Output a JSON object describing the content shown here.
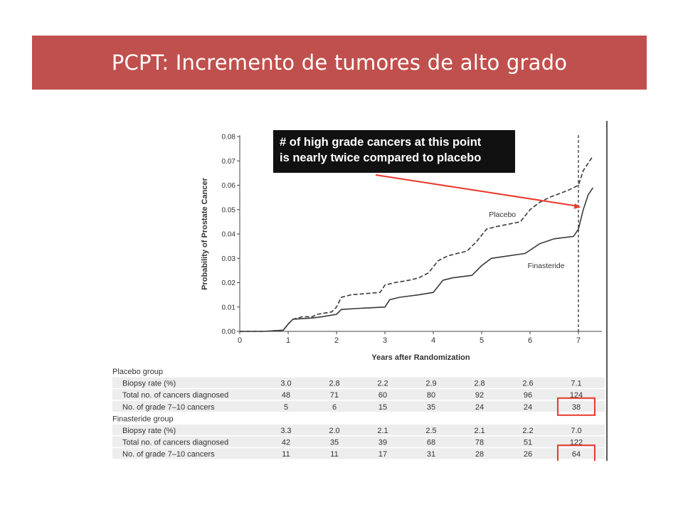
{
  "slide": {
    "title": "PCPT: Incremento de tumores de alto grado"
  },
  "colors": {
    "title_bg": "#c0504d",
    "arrow": "#e8392a",
    "highlight_box": "#e8392a",
    "annotation_bg": "#111111",
    "table_band": "#ededed"
  },
  "chart_data": {
    "type": "line",
    "title": "",
    "xlabel": "Years after Randomization",
    "ylabel": "Probability of Prostate Cancer",
    "xlim": [
      0,
      7.5
    ],
    "ylim": [
      0,
      0.08
    ],
    "x_ticks": [
      0,
      1,
      2,
      3,
      4,
      5,
      6,
      7
    ],
    "y_ticks": [
      "0.00",
      "0.01",
      "0.02",
      "0.03",
      "0.04",
      "0.05",
      "0.06",
      "0.07",
      "0.08"
    ],
    "grid": false,
    "series": [
      {
        "name": "Placebo",
        "style": "dashed",
        "points": [
          [
            0,
            0
          ],
          [
            0.5,
            0
          ],
          [
            0.9,
            0.0005
          ],
          [
            1.0,
            0.003
          ],
          [
            1.1,
            0.005
          ],
          [
            1.3,
            0.006
          ],
          [
            1.5,
            0.006
          ],
          [
            1.6,
            0.007
          ],
          [
            1.9,
            0.008
          ],
          [
            2.0,
            0.01
          ],
          [
            2.1,
            0.014
          ],
          [
            2.3,
            0.015
          ],
          [
            2.9,
            0.016
          ],
          [
            3.0,
            0.019
          ],
          [
            3.2,
            0.02
          ],
          [
            3.5,
            0.021
          ],
          [
            3.7,
            0.022
          ],
          [
            3.9,
            0.024
          ],
          [
            4.1,
            0.029
          ],
          [
            4.3,
            0.031
          ],
          [
            4.7,
            0.033
          ],
          [
            4.9,
            0.037
          ],
          [
            5.1,
            0.042
          ],
          [
            5.3,
            0.043
          ],
          [
            5.8,
            0.045
          ],
          [
            6.0,
            0.05
          ],
          [
            6.2,
            0.053
          ],
          [
            6.4,
            0.055
          ],
          [
            6.8,
            0.058
          ],
          [
            7.0,
            0.06
          ],
          [
            7.1,
            0.066
          ],
          [
            7.2,
            0.069
          ],
          [
            7.3,
            0.072
          ]
        ]
      },
      {
        "name": "Finasteride",
        "style": "solid",
        "points": [
          [
            0,
            0
          ],
          [
            0.5,
            0
          ],
          [
            0.9,
            0.0005
          ],
          [
            1.0,
            0.003
          ],
          [
            1.1,
            0.005
          ],
          [
            1.5,
            0.0055
          ],
          [
            1.7,
            0.006
          ],
          [
            2.0,
            0.007
          ],
          [
            2.1,
            0.009
          ],
          [
            2.5,
            0.0095
          ],
          [
            3.0,
            0.01
          ],
          [
            3.1,
            0.013
          ],
          [
            3.3,
            0.014
          ],
          [
            3.7,
            0.015
          ],
          [
            4.0,
            0.016
          ],
          [
            4.2,
            0.021
          ],
          [
            4.4,
            0.022
          ],
          [
            4.8,
            0.023
          ],
          [
            5.0,
            0.027
          ],
          [
            5.2,
            0.03
          ],
          [
            5.9,
            0.032
          ],
          [
            6.2,
            0.036
          ],
          [
            6.5,
            0.038
          ],
          [
            6.9,
            0.039
          ],
          [
            7.0,
            0.042
          ],
          [
            7.1,
            0.05
          ],
          [
            7.2,
            0.056
          ],
          [
            7.3,
            0.059
          ]
        ]
      }
    ],
    "vertical_marker_x": 7,
    "annotation": {
      "lines": [
        "# of high grade cancers at this point",
        "is nearly twice compared to placebo"
      ],
      "arrow_to": [
        7.05,
        0.051
      ]
    },
    "table": {
      "columns": [
        1,
        2,
        3,
        4,
        5,
        6,
        7
      ],
      "groups": [
        {
          "name": "Placebo group",
          "rows": [
            {
              "label": "Biopsy rate (%)",
              "values": [
                "3.0",
                "2.8",
                "2.2",
                "2.9",
                "2.8",
                "2.6",
                "7.1"
              ]
            },
            {
              "label": "Total no. of cancers diagnosed",
              "values": [
                "48",
                "71",
                "60",
                "80",
                "92",
                "96",
                "124"
              ]
            },
            {
              "label": "No. of grade 7–10 cancers",
              "values": [
                "5",
                "6",
                "15",
                "35",
                "24",
                "24",
                "38"
              ],
              "highlight_last": true
            }
          ]
        },
        {
          "name": "Finasteride group",
          "rows": [
            {
              "label": "Biopsy rate (%)",
              "values": [
                "3.3",
                "2.0",
                "2.1",
                "2.5",
                "2.1",
                "2.2",
                "7.0"
              ]
            },
            {
              "label": "Total no. of cancers diagnosed",
              "values": [
                "42",
                "35",
                "39",
                "68",
                "78",
                "51",
                "122"
              ]
            },
            {
              "label": "No. of grade 7–10 cancers",
              "values": [
                "11",
                "11",
                "17",
                "31",
                "28",
                "26",
                "64"
              ],
              "highlight_last": true
            }
          ]
        }
      ]
    }
  }
}
